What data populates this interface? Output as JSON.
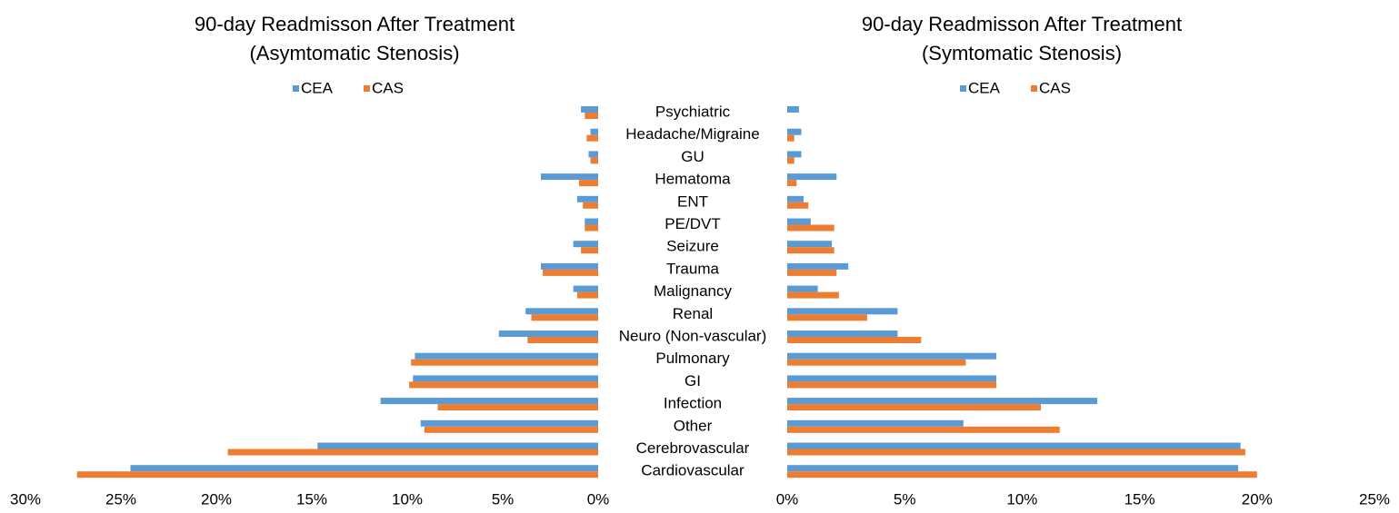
{
  "chart_data": [
    {
      "type": "hbar",
      "title": "90-day Readmisson After Treatment",
      "subtitle": "(Asymtomatic Stenosis)",
      "categories": [
        "Psychiatric",
        "Headache/Migraine",
        "GU",
        "Hematoma",
        "ENT",
        "PE/DVT",
        "Seizure",
        "Trauma",
        "Malignancy",
        "Renal",
        "Neuro (Non-vascular)",
        "Pulmonary",
        "GI",
        "Infection",
        "Other",
        "Cerebrovascular",
        "Cardiovascular"
      ],
      "series": [
        {
          "name": "CEA",
          "color": "#5b9bd5",
          "values": [
            0.9,
            0.4,
            0.5,
            3.0,
            1.1,
            0.7,
            1.3,
            3.0,
            1.3,
            3.8,
            5.2,
            9.6,
            9.7,
            11.4,
            9.3,
            14.7,
            24.5
          ]
        },
        {
          "name": "CAS",
          "color": "#ed7d31",
          "values": [
            0.7,
            0.6,
            0.4,
            1.0,
            0.8,
            0.7,
            0.9,
            2.9,
            1.1,
            3.5,
            3.7,
            9.8,
            9.9,
            8.4,
            9.1,
            19.4,
            27.3
          ]
        }
      ],
      "xlim": [
        30,
        0
      ],
      "xticks": [
        {
          "value": 30,
          "label": "30%"
        },
        {
          "value": 25,
          "label": "25%"
        },
        {
          "value": 20,
          "label": "20%"
        },
        {
          "value": 15,
          "label": "15%"
        },
        {
          "value": 10,
          "label": "10%"
        },
        {
          "value": 5,
          "label": "5%"
        },
        {
          "value": 0,
          "label": "0%"
        }
      ],
      "legend": "top",
      "grid": false
    },
    {
      "type": "hbar",
      "title": "90-day Readmisson After Treatment",
      "subtitle": "(Symtomatic Stenosis)",
      "series": [
        {
          "name": "CEA",
          "color": "#5b9bd5",
          "values": [
            0.5,
            0.6,
            0.6,
            2.1,
            0.7,
            1.0,
            1.9,
            2.6,
            1.3,
            4.7,
            4.7,
            8.9,
            8.9,
            13.2,
            7.5,
            19.3,
            19.2
          ]
        },
        {
          "name": "CAS",
          "color": "#ed7d31",
          "values": [
            0,
            0.3,
            0.3,
            0.4,
            0.9,
            2.0,
            2.0,
            2.1,
            2.2,
            3.4,
            5.7,
            7.6,
            8.9,
            10.8,
            11.6,
            19.5,
            20.0
          ]
        }
      ],
      "xlim": [
        0,
        25
      ],
      "xticks": [
        {
          "value": 0,
          "label": "0%"
        },
        {
          "value": 5,
          "label": "5%"
        },
        {
          "value": 10,
          "label": "10%"
        },
        {
          "value": 15,
          "label": "15%"
        },
        {
          "value": 20,
          "label": "20%"
        },
        {
          "value": 25,
          "label": "25%"
        }
      ],
      "legend": "top",
      "grid": false
    }
  ]
}
